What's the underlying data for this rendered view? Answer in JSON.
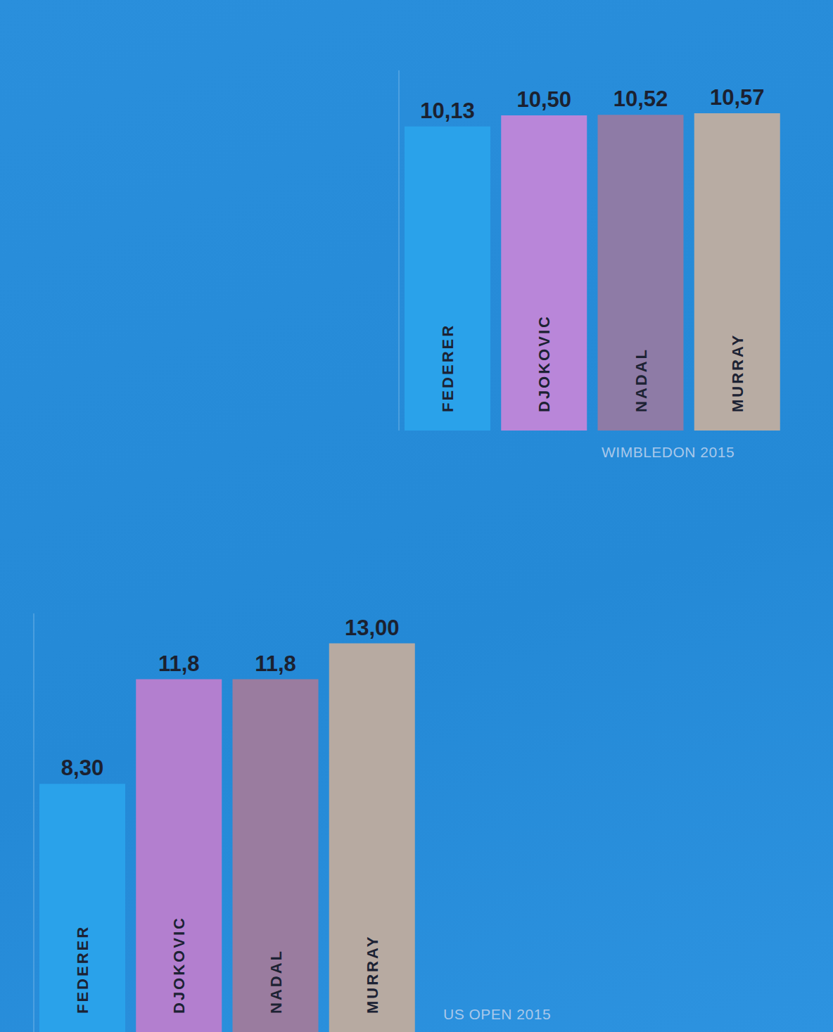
{
  "chart_data": [
    {
      "type": "bar",
      "title": "WIMBLEDON 2015",
      "categories": [
        "FEDERER",
        "DJOKOVIC",
        "NADAL",
        "MURRAY"
      ],
      "values": [
        10.13,
        10.5,
        10.52,
        10.57
      ],
      "value_labels": [
        "10,13",
        "10,50",
        "10,52",
        "10,57"
      ],
      "colors": [
        "#2aa2ea",
        "#b986d9",
        "#8e7ba6",
        "#b8aca3"
      ],
      "ylim": [
        0,
        12
      ],
      "tick_labels": false,
      "data_labels": true
    },
    {
      "type": "bar",
      "title": "US OPEN 2015",
      "categories": [
        "FEDERER",
        "DJOKOVIC",
        "NADAL",
        "MURRAY"
      ],
      "values": [
        8.3,
        11.8,
        11.8,
        13
      ],
      "value_labels": [
        "8,30",
        "11,8",
        "11,8",
        "13,00"
      ],
      "colors": [
        "#2aa2ea",
        "#b37fcf",
        "#9a7c9f",
        "#b7aaa1"
      ],
      "ylim": [
        0,
        14
      ],
      "tick_labels": false,
      "data_labels": true
    }
  ]
}
